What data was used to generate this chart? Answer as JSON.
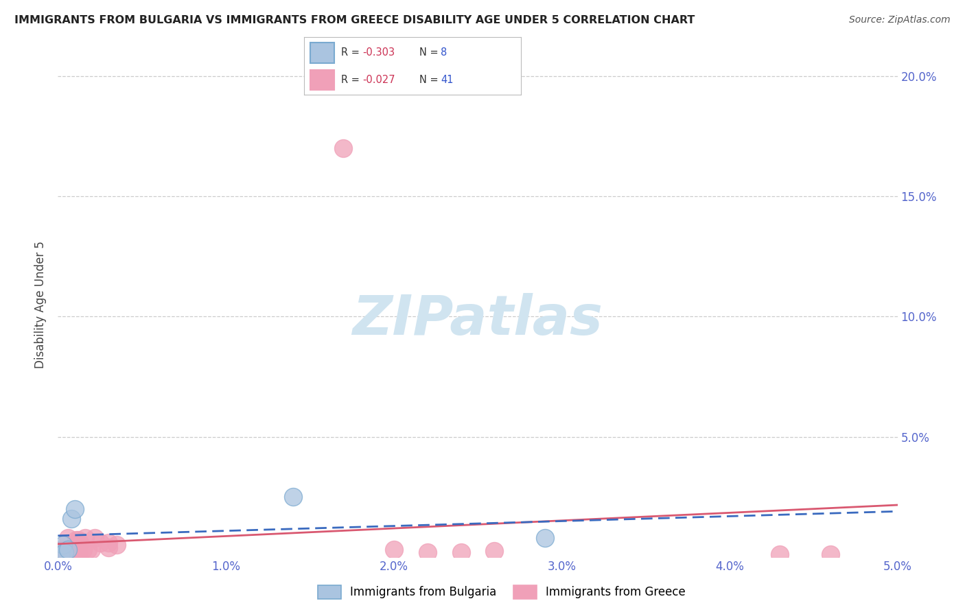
{
  "title": "IMMIGRANTS FROM BULGARIA VS IMMIGRANTS FROM GREECE DISABILITY AGE UNDER 5 CORRELATION CHART",
  "source": "Source: ZipAtlas.com",
  "ylabel": "Disability Age Under 5",
  "xlim": [
    0.0,
    0.05
  ],
  "ylim": [
    0.0,
    0.21
  ],
  "xtick_vals": [
    0.0,
    0.01,
    0.02,
    0.03,
    0.04,
    0.05
  ],
  "xtick_labels": [
    "0.0%",
    "1.0%",
    "2.0%",
    "3.0%",
    "4.0%",
    "5.0%"
  ],
  "ytick_vals": [
    0.0,
    0.05,
    0.1,
    0.15,
    0.2
  ],
  "ytick_labels_right": [
    "",
    "5.0%",
    "10.0%",
    "15.0%",
    "20.0%"
  ],
  "legend1_label": "R = -0.303   N =  8",
  "legend2_label": "R = -0.027   N = 41",
  "legend1_R": "-0.303",
  "legend1_N": "8",
  "legend2_R": "-0.027",
  "legend2_N": "41",
  "bulgaria_color": "#aac4e0",
  "bulgaria_edge_color": "#7aaad0",
  "greece_color": "#f0a0b8",
  "greece_edge_color": "#f0a0b8",
  "bulgaria_line_color": "#3a6abf",
  "greece_line_color": "#d95870",
  "watermark_color": "#d0e4f0",
  "background_color": "#ffffff",
  "grid_color": "#cccccc",
  "title_color": "#222222",
  "source_color": "#555555",
  "tick_color": "#5566cc",
  "ylabel_color": "#444444",
  "bulgaria_x": [
    0.0002,
    0.0003,
    0.0004,
    0.0006,
    0.0008,
    0.001,
    0.014,
    0.029
  ],
  "bulgaria_y": [
    0.001,
    0.005,
    0.002,
    0.003,
    0.016,
    0.02,
    0.025,
    0.008
  ],
  "greece_x": [
    0.0001,
    0.0001,
    0.0002,
    0.0002,
    0.0002,
    0.0003,
    0.0003,
    0.0003,
    0.0004,
    0.0004,
    0.0005,
    0.0005,
    0.0006,
    0.0006,
    0.0006,
    0.0007,
    0.0007,
    0.0008,
    0.0009,
    0.001,
    0.001,
    0.0011,
    0.0012,
    0.0012,
    0.0013,
    0.0015,
    0.0016,
    0.0018,
    0.002,
    0.0022,
    0.0025,
    0.003,
    0.003,
    0.0035,
    0.017,
    0.02,
    0.022,
    0.024,
    0.026,
    0.043,
    0.046
  ],
  "greece_y": [
    0.001,
    0.002,
    0.001,
    0.002,
    0.003,
    0.001,
    0.002,
    0.003,
    0.001,
    0.002,
    0.001,
    0.002,
    0.001,
    0.002,
    0.008,
    0.001,
    0.003,
    0.002,
    0.004,
    0.001,
    0.005,
    0.007,
    0.002,
    0.007,
    0.006,
    0.003,
    0.008,
    0.003,
    0.003,
    0.008,
    0.006,
    0.004,
    0.006,
    0.005,
    0.17,
    0.003,
    0.002,
    0.002,
    0.0025,
    0.001,
    0.001
  ]
}
